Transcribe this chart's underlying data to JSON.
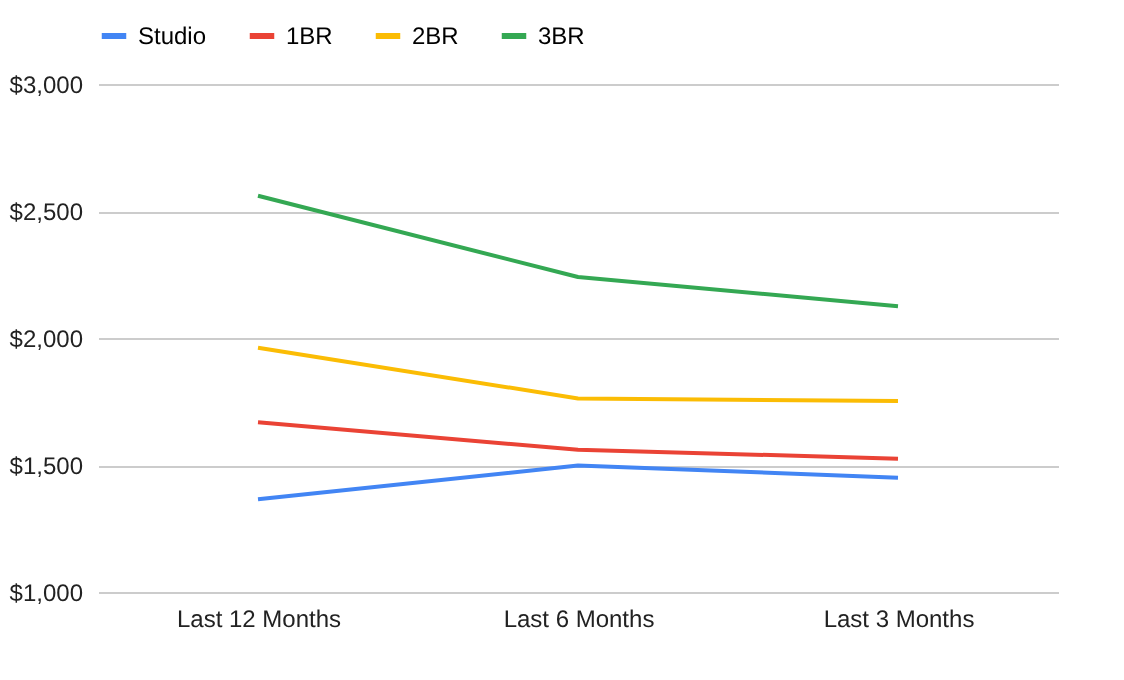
{
  "chart_data": {
    "type": "line",
    "categories": [
      "Last 12 Months",
      "Last 6 Months",
      "Last 3 Months"
    ],
    "series": [
      {
        "name": "Studio",
        "color": "#4285f4",
        "values": [
          1365,
          1498,
          1450
        ]
      },
      {
        "name": "1BR",
        "color": "#ea4335",
        "values": [
          1668,
          1560,
          1525
        ]
      },
      {
        "name": "2BR",
        "color": "#fbbc04",
        "values": [
          1962,
          1762,
          1752
        ]
      },
      {
        "name": "3BR",
        "color": "#34a853",
        "values": [
          2560,
          2240,
          2125
        ]
      }
    ],
    "ylim": [
      1000,
      3000
    ],
    "yticks": [
      {
        "value": 1000,
        "label": "$1,000"
      },
      {
        "value": 1500,
        "label": "$1,500"
      },
      {
        "value": 2000,
        "label": "$2,000"
      },
      {
        "value": 2500,
        "label": "$2,500"
      },
      {
        "value": 3000,
        "label": "$3,000"
      }
    ],
    "grid": "y",
    "legend": "top",
    "marker": "none",
    "line_style": "solid"
  }
}
